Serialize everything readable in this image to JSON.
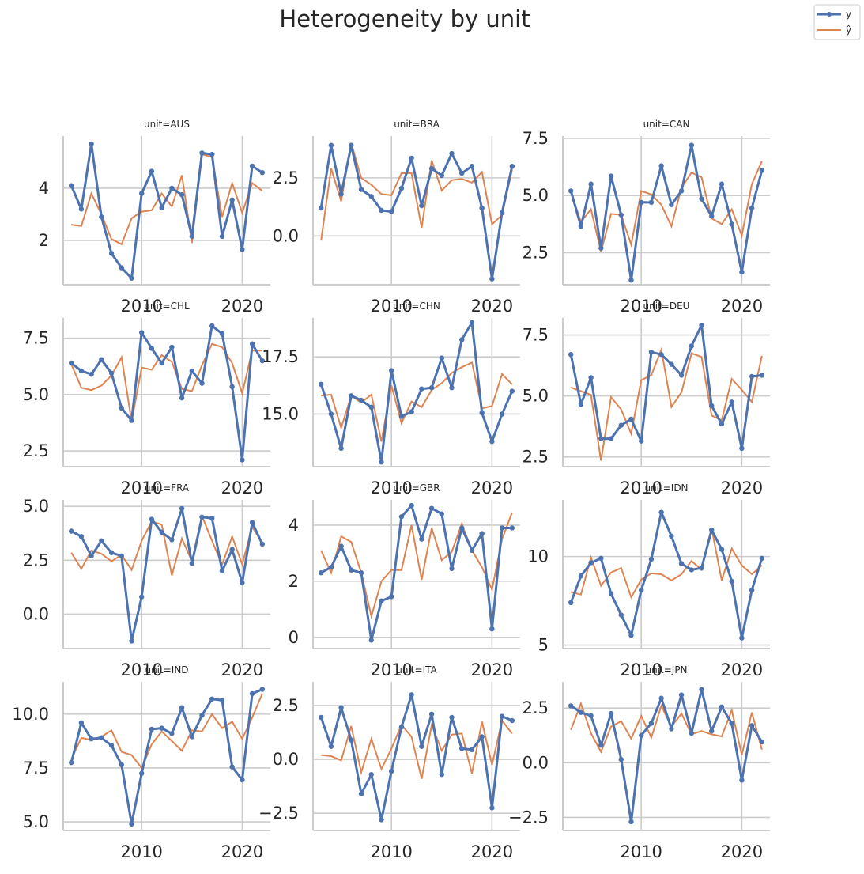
{
  "chart_data": {
    "type": "line",
    "title": "Heterogeneity by unit",
    "legend": {
      "placement": "top-right",
      "entries": [
        "y",
        "ŷ"
      ]
    },
    "series_names": [
      "y",
      "ŷ"
    ],
    "colors": {
      "y": "#4c72b0",
      "yhat": "#dd8452"
    },
    "grid": true,
    "x": [
      2003,
      2004,
      2005,
      2006,
      2007,
      2008,
      2009,
      2010,
      2011,
      2012,
      2013,
      2014,
      2015,
      2016,
      2017,
      2018,
      2019,
      2020,
      2021,
      2022
    ],
    "x_ticks": [
      2010,
      2020
    ],
    "x_tick_labels": [
      "2010",
      "2020"
    ],
    "panels": [
      {
        "title": "unit=AUS",
        "ylim": [
          0.3,
          6.0
        ],
        "y_ticks": [
          2,
          4
        ],
        "y_tick_labels": [
          "2",
          "4"
        ],
        "y": [
          4.1,
          3.2,
          5.7,
          2.9,
          1.5,
          0.95,
          0.55,
          3.8,
          4.65,
          3.25,
          4.0,
          3.75,
          2.15,
          5.35,
          5.3,
          2.15,
          3.55,
          1.65,
          4.85,
          4.6
        ],
        "yhat": [
          2.6,
          2.55,
          3.8,
          3.0,
          2.05,
          1.85,
          2.85,
          3.1,
          3.15,
          3.8,
          3.3,
          4.5,
          1.9,
          5.3,
          5.2,
          2.9,
          4.2,
          3.05,
          4.2,
          3.9
        ]
      },
      {
        "title": "unit=BRA",
        "ylim": [
          -2.1,
          4.3
        ],
        "y_ticks": [
          0.0,
          2.5
        ],
        "y_tick_labels": [
          "0.0",
          "2.5"
        ],
        "y": [
          1.2,
          3.9,
          1.8,
          3.9,
          2.0,
          1.7,
          1.1,
          1.05,
          2.05,
          3.35,
          1.3,
          2.9,
          2.6,
          3.55,
          2.7,
          3.0,
          1.2,
          -1.85,
          1.0,
          3.0
        ],
        "yhat": [
          -0.2,
          2.9,
          1.5,
          4.0,
          2.5,
          2.2,
          1.8,
          1.75,
          2.7,
          2.7,
          0.35,
          3.25,
          1.95,
          2.4,
          2.45,
          2.3,
          2.75,
          0.5,
          0.9,
          2.85
        ]
      },
      {
        "title": "unit=CAN",
        "ylim": [
          1.1,
          7.6
        ],
        "y_ticks": [
          2.5,
          5.0,
          7.5
        ],
        "y_tick_labels": [
          "2.5",
          "5.0",
          "7.5"
        ],
        "y": [
          5.2,
          3.65,
          5.5,
          2.7,
          5.85,
          4.15,
          1.3,
          4.7,
          4.7,
          6.3,
          4.6,
          5.2,
          7.2,
          4.85,
          4.1,
          5.5,
          3.75,
          1.65,
          4.45,
          6.1
        ],
        "yhat": [
          5.15,
          3.85,
          4.4,
          2.55,
          4.2,
          4.15,
          2.85,
          5.2,
          5.05,
          4.6,
          3.65,
          5.35,
          6.0,
          5.8,
          4.0,
          3.75,
          4.4,
          3.25,
          5.5,
          6.5
        ]
      },
      {
        "title": "unit=CHL",
        "ylim": [
          1.8,
          8.4
        ],
        "y_ticks": [
          2.5,
          5.0,
          7.5
        ],
        "y_tick_labels": [
          "2.5",
          "5.0",
          "7.5"
        ],
        "y": [
          6.4,
          6.05,
          5.9,
          6.55,
          5.95,
          4.4,
          3.85,
          7.75,
          7.05,
          6.4,
          7.1,
          4.85,
          6.05,
          5.5,
          8.05,
          7.7,
          5.35,
          2.1,
          7.25,
          6.5
        ],
        "yhat": [
          6.35,
          5.3,
          5.2,
          5.4,
          5.85,
          6.65,
          3.8,
          6.2,
          6.1,
          6.75,
          6.45,
          5.25,
          5.15,
          6.3,
          7.25,
          7.1,
          6.4,
          5.05,
          6.95,
          6.95
        ]
      },
      {
        "title": "unit=CHN",
        "ylim": [
          12.7,
          19.2
        ],
        "y_ticks": [
          15.0,
          17.5
        ],
        "y_tick_labels": [
          "15.0",
          "17.5"
        ],
        "y": [
          16.3,
          15.0,
          13.5,
          15.8,
          15.6,
          15.3,
          12.9,
          16.9,
          14.9,
          15.1,
          16.1,
          16.15,
          17.45,
          16.15,
          18.25,
          19.0,
          15.05,
          13.8,
          15.0,
          16.0
        ],
        "yhat": [
          15.8,
          15.85,
          14.4,
          15.8,
          15.5,
          15.85,
          13.8,
          16.25,
          14.6,
          15.55,
          15.3,
          16.05,
          16.35,
          16.8,
          17.05,
          17.25,
          15.25,
          15.35,
          16.75,
          16.3
        ]
      },
      {
        "title": "unit=DEU",
        "ylim": [
          2.1,
          8.2
        ],
        "y_ticks": [
          2.5,
          5.0,
          7.5
        ],
        "y_tick_labels": [
          "2.5",
          "5.0",
          "7.5"
        ],
        "y": [
          6.7,
          4.65,
          5.75,
          3.25,
          3.25,
          3.8,
          4.05,
          3.15,
          6.8,
          6.7,
          6.3,
          5.85,
          7.05,
          7.9,
          4.6,
          3.85,
          4.75,
          2.85,
          5.8,
          5.85
        ],
        "yhat": [
          5.35,
          5.2,
          5.05,
          2.35,
          4.95,
          4.45,
          3.45,
          5.65,
          5.85,
          6.9,
          4.55,
          5.15,
          6.75,
          6.6,
          4.2,
          4.0,
          5.7,
          5.25,
          4.75,
          6.65
        ]
      },
      {
        "title": "unit=FRA",
        "ylim": [
          -1.6,
          5.3
        ],
        "y_ticks": [
          0.0,
          2.5,
          5.0
        ],
        "y_tick_labels": [
          "0.0",
          "2.5",
          "5.0"
        ],
        "y": [
          3.85,
          3.6,
          2.7,
          3.4,
          2.85,
          2.7,
          -1.25,
          0.8,
          4.4,
          3.8,
          3.45,
          4.9,
          2.35,
          4.5,
          4.45,
          2.0,
          3.0,
          1.45,
          4.25,
          3.25
        ],
        "yhat": [
          2.85,
          2.1,
          2.95,
          2.8,
          2.45,
          2.75,
          2.05,
          3.4,
          4.3,
          4.15,
          1.8,
          3.5,
          2.45,
          4.55,
          3.4,
          2.3,
          3.6,
          2.3,
          4.05,
          3.3
        ]
      },
      {
        "title": "unit=GBR",
        "ylim": [
          -0.4,
          4.9
        ],
        "y_ticks": [
          0,
          2,
          4
        ],
        "y_tick_labels": [
          "0",
          "2",
          "4"
        ],
        "y": [
          2.3,
          2.5,
          3.25,
          2.4,
          2.3,
          -0.1,
          1.3,
          1.45,
          4.3,
          4.7,
          3.5,
          4.6,
          4.4,
          2.45,
          3.9,
          3.1,
          3.7,
          0.3,
          3.9,
          3.9
        ],
        "yhat": [
          3.1,
          2.3,
          3.6,
          3.4,
          2.3,
          0.75,
          2.0,
          2.4,
          2.4,
          4.0,
          2.05,
          3.9,
          2.75,
          3.05,
          4.05,
          3.1,
          2.5,
          1.7,
          3.5,
          4.45
        ]
      },
      {
        "title": "unit=IDN",
        "ylim": [
          4.8,
          13.2
        ],
        "y_ticks": [
          5,
          10
        ],
        "y_tick_labels": [
          "5",
          "10"
        ],
        "y": [
          7.4,
          8.9,
          9.65,
          9.9,
          7.9,
          6.7,
          5.55,
          8.1,
          9.85,
          12.5,
          11.15,
          9.6,
          9.25,
          9.35,
          11.5,
          10.4,
          8.6,
          5.4,
          8.1,
          9.9
        ],
        "yhat": [
          8.0,
          7.85,
          9.95,
          8.35,
          9.1,
          9.35,
          7.7,
          8.7,
          9.05,
          9.0,
          8.65,
          9.0,
          9.75,
          9.25,
          11.6,
          8.65,
          10.45,
          9.5,
          9.0,
          9.5
        ]
      },
      {
        "title": "unit=IND",
        "ylim": [
          4.6,
          11.5
        ],
        "y_ticks": [
          5.0,
          7.5,
          10.0
        ],
        "y_tick_labels": [
          "5.0",
          "7.5",
          "10.0"
        ],
        "y": [
          7.75,
          9.6,
          8.85,
          8.9,
          8.55,
          7.65,
          4.9,
          7.25,
          9.3,
          9.35,
          9.1,
          10.3,
          8.95,
          9.95,
          10.7,
          10.65,
          7.55,
          6.95,
          10.95,
          11.15
        ],
        "yhat": [
          7.9,
          8.9,
          8.8,
          8.95,
          9.25,
          8.25,
          8.1,
          7.5,
          8.6,
          9.2,
          8.75,
          8.3,
          9.25,
          9.2,
          10.0,
          9.35,
          9.65,
          8.85,
          9.85,
          10.95
        ]
      },
      {
        "title": "unit=ITA",
        "ylim": [
          -3.3,
          3.6
        ],
        "y_ticks": [
          -2.5,
          0.0,
          2.5
        ],
        "y_tick_labels": [
          "−2.5",
          "0.0",
          "2.5"
        ],
        "y": [
          1.95,
          0.6,
          2.4,
          0.9,
          -1.6,
          -0.7,
          -2.8,
          -0.55,
          1.5,
          3.0,
          0.6,
          2.1,
          -0.7,
          1.95,
          0.5,
          0.45,
          1.05,
          -2.25,
          2.0,
          1.8
        ],
        "yhat": [
          0.2,
          0.15,
          -0.05,
          1.55,
          -0.6,
          0.95,
          -0.45,
          0.5,
          1.6,
          1.05,
          -0.9,
          1.6,
          0.4,
          1.15,
          1.2,
          -0.65,
          1.75,
          -0.25,
          1.8,
          1.2
        ]
      },
      {
        "title": "unit=JPN",
        "ylim": [
          -3.1,
          3.7
        ],
        "y_ticks": [
          -2.5,
          0.0,
          2.5
        ],
        "y_tick_labels": [
          "−2.5",
          "0.0",
          "2.5"
        ],
        "y": [
          2.6,
          2.3,
          2.15,
          0.8,
          2.25,
          0.15,
          -2.7,
          1.25,
          1.8,
          2.95,
          1.55,
          3.1,
          1.35,
          3.35,
          1.45,
          2.55,
          1.8,
          -0.8,
          1.7,
          0.95
        ],
        "yhat": [
          1.5,
          2.7,
          1.35,
          0.5,
          1.65,
          1.9,
          1.1,
          2.15,
          1.15,
          2.6,
          1.65,
          2.25,
          1.3,
          1.45,
          1.3,
          1.2,
          2.4,
          0.35,
          2.3,
          0.6
        ]
      }
    ]
  }
}
